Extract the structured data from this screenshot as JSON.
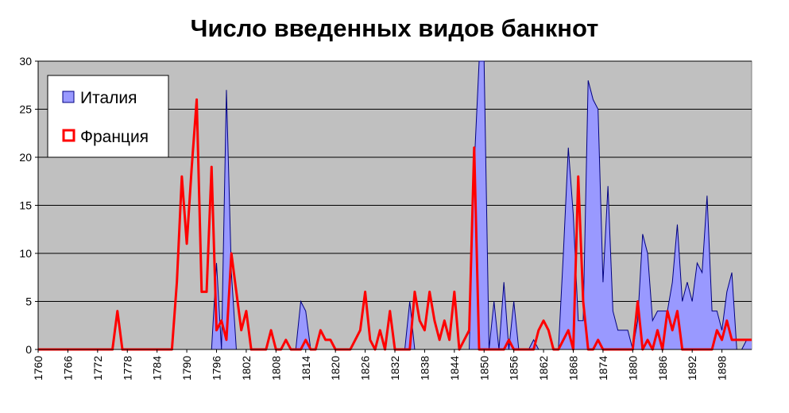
{
  "chart_data": {
    "type": "area",
    "title": "Число введенных видов банкнот",
    "xlabel": "",
    "ylabel": "",
    "x_range": [
      1760,
      1904
    ],
    "ylim": [
      0,
      30
    ],
    "yticks": [
      0,
      5,
      10,
      15,
      20,
      25,
      30
    ],
    "xticks": [
      1760,
      1766,
      1772,
      1778,
      1784,
      1790,
      1796,
      1802,
      1808,
      1814,
      1820,
      1826,
      1832,
      1838,
      1844,
      1850,
      1856,
      1862,
      1868,
      1874,
      1880,
      1886,
      1892,
      1898
    ],
    "grid": true,
    "legend_position": "top-left",
    "plot_background": "#c0c0c0",
    "series": [
      {
        "name": "Италия",
        "kind": "area",
        "fill": "#9999ff",
        "stroke": "#000080",
        "points": [
          [
            1795,
            0
          ],
          [
            1796,
            9
          ],
          [
            1797,
            0
          ],
          [
            1798,
            27
          ],
          [
            1799,
            8
          ],
          [
            1800,
            0
          ],
          [
            1812,
            0
          ],
          [
            1813,
            5
          ],
          [
            1814,
            4
          ],
          [
            1815,
            0
          ],
          [
            1834,
            0
          ],
          [
            1835,
            5
          ],
          [
            1836,
            0
          ],
          [
            1846,
            0
          ],
          [
            1847,
            0
          ],
          [
            1848,
            19
          ],
          [
            1849,
            31
          ],
          [
            1850,
            31
          ],
          [
            1851,
            0
          ],
          [
            1852,
            5
          ],
          [
            1853,
            0
          ],
          [
            1854,
            7
          ],
          [
            1855,
            0
          ],
          [
            1856,
            5
          ],
          [
            1857,
            0
          ],
          [
            1859,
            0
          ],
          [
            1860,
            1
          ],
          [
            1861,
            0
          ],
          [
            1865,
            0
          ],
          [
            1866,
            10
          ],
          [
            1867,
            21
          ],
          [
            1868,
            14
          ],
          [
            1869,
            3
          ],
          [
            1870,
            3
          ],
          [
            1871,
            28
          ],
          [
            1872,
            26
          ],
          [
            1873,
            25
          ],
          [
            1874,
            7
          ],
          [
            1875,
            17
          ],
          [
            1876,
            4
          ],
          [
            1877,
            2
          ],
          [
            1878,
            2
          ],
          [
            1879,
            2
          ],
          [
            1880,
            0
          ],
          [
            1881,
            3
          ],
          [
            1882,
            12
          ],
          [
            1883,
            10
          ],
          [
            1884,
            3
          ],
          [
            1885,
            4
          ],
          [
            1886,
            4
          ],
          [
            1887,
            4
          ],
          [
            1888,
            7
          ],
          [
            1889,
            13
          ],
          [
            1890,
            5
          ],
          [
            1891,
            7
          ],
          [
            1892,
            5
          ],
          [
            1893,
            9
          ],
          [
            1894,
            8
          ],
          [
            1895,
            16
          ],
          [
            1896,
            4
          ],
          [
            1897,
            4
          ],
          [
            1898,
            2
          ],
          [
            1899,
            6
          ],
          [
            1900,
            8
          ],
          [
            1901,
            0
          ],
          [
            1902,
            0
          ],
          [
            1903,
            1
          ],
          [
            1904,
            1
          ]
        ]
      },
      {
        "name": "Франция",
        "kind": "line",
        "stroke": "#ff0000",
        "points": [
          [
            1760,
            0
          ],
          [
            1775,
            0
          ],
          [
            1776,
            4
          ],
          [
            1777,
            0
          ],
          [
            1787,
            0
          ],
          [
            1788,
            7
          ],
          [
            1789,
            18
          ],
          [
            1790,
            11
          ],
          [
            1791,
            19
          ],
          [
            1792,
            26
          ],
          [
            1793,
            6
          ],
          [
            1794,
            6
          ],
          [
            1795,
            19
          ],
          [
            1796,
            2
          ],
          [
            1797,
            3
          ],
          [
            1798,
            1
          ],
          [
            1799,
            10
          ],
          [
            1800,
            6
          ],
          [
            1801,
            2
          ],
          [
            1802,
            4
          ],
          [
            1803,
            0
          ],
          [
            1806,
            0
          ],
          [
            1807,
            2
          ],
          [
            1808,
            0
          ],
          [
            1809,
            0
          ],
          [
            1810,
            1
          ],
          [
            1811,
            0
          ],
          [
            1813,
            0
          ],
          [
            1814,
            1
          ],
          [
            1815,
            0
          ],
          [
            1816,
            0
          ],
          [
            1817,
            2
          ],
          [
            1818,
            1
          ],
          [
            1819,
            1
          ],
          [
            1820,
            0
          ],
          [
            1823,
            0
          ],
          [
            1824,
            1
          ],
          [
            1825,
            2
          ],
          [
            1826,
            6
          ],
          [
            1827,
            1
          ],
          [
            1828,
            0
          ],
          [
            1829,
            2
          ],
          [
            1830,
            0
          ],
          [
            1831,
            4
          ],
          [
            1832,
            0
          ],
          [
            1833,
            0
          ],
          [
            1834,
            0
          ],
          [
            1835,
            0
          ],
          [
            1836,
            6
          ],
          [
            1837,
            3
          ],
          [
            1838,
            2
          ],
          [
            1839,
            6
          ],
          [
            1840,
            3
          ],
          [
            1841,
            1
          ],
          [
            1842,
            3
          ],
          [
            1843,
            1
          ],
          [
            1844,
            6
          ],
          [
            1845,
            0
          ],
          [
            1846,
            1
          ],
          [
            1847,
            2
          ],
          [
            1848,
            21
          ],
          [
            1849,
            0
          ],
          [
            1854,
            0
          ],
          [
            1855,
            1
          ],
          [
            1856,
            0
          ],
          [
            1860,
            0
          ],
          [
            1861,
            2
          ],
          [
            1862,
            3
          ],
          [
            1863,
            2
          ],
          [
            1864,
            0
          ],
          [
            1865,
            0
          ],
          [
            1866,
            1
          ],
          [
            1867,
            2
          ],
          [
            1868,
            0
          ],
          [
            1869,
            18
          ],
          [
            1870,
            5
          ],
          [
            1871,
            0
          ],
          [
            1872,
            0
          ],
          [
            1873,
            1
          ],
          [
            1874,
            0
          ],
          [
            1879,
            0
          ],
          [
            1880,
            0
          ],
          [
            1881,
            5
          ],
          [
            1882,
            0
          ],
          [
            1883,
            1
          ],
          [
            1884,
            0
          ],
          [
            1885,
            2
          ],
          [
            1886,
            0
          ],
          [
            1887,
            4
          ],
          [
            1888,
            2
          ],
          [
            1889,
            4
          ],
          [
            1890,
            0
          ],
          [
            1896,
            0
          ],
          [
            1897,
            2
          ],
          [
            1898,
            1
          ],
          [
            1899,
            3
          ],
          [
            1900,
            1
          ],
          [
            1901,
            1
          ],
          [
            1904,
            1
          ]
        ]
      }
    ]
  }
}
